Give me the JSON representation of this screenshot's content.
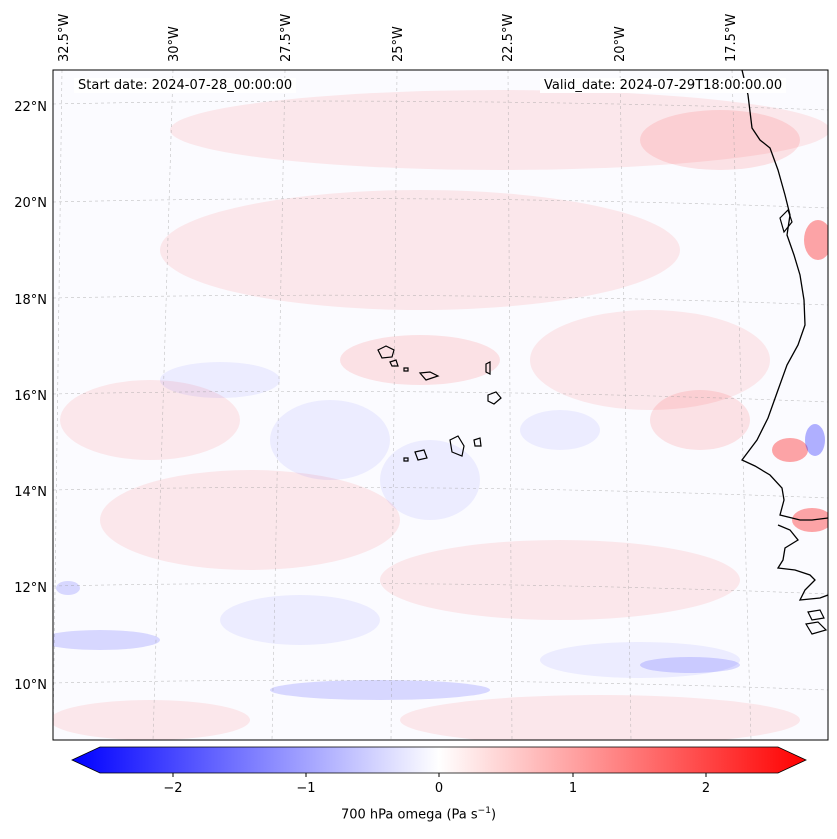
{
  "map": {
    "start_date_label": "Start date: 2024-07-28_00:00:00",
    "valid_date_label": "Valid_date: 2024-07-29T18:00:00.00",
    "lon_labels": [
      "32.5°W",
      "30°W",
      "27.5°W",
      "25°W",
      "22.5°W",
      "20°W",
      "17.5°W"
    ],
    "lat_labels": [
      "22°N",
      "20°N",
      "18°N",
      "16°N",
      "14°N",
      "12°N",
      "10°N"
    ],
    "field_colors": {
      "negative": "#0000ff",
      "zero": "#ffffff",
      "positive": "#ff0000"
    }
  },
  "colorbar": {
    "label": "700 hPa omega (Pa s",
    "label_sup": "−1",
    "label_tail": ")",
    "range": [
      -2.5,
      2.5
    ],
    "ticks": [
      "−2",
      "−1",
      "0",
      "1",
      "2"
    ]
  }
}
